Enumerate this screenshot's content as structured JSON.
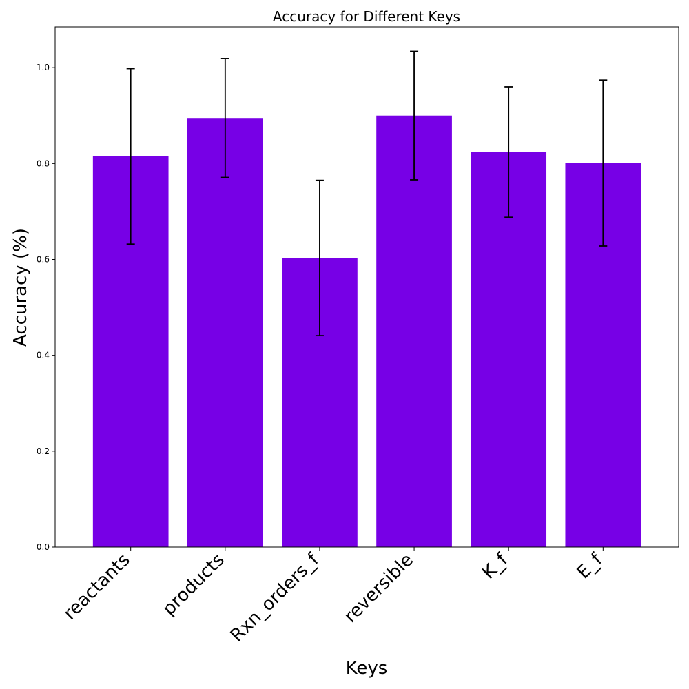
{
  "chart_data": {
    "type": "bar",
    "title": "Accuracy for Different Keys",
    "xlabel": "Keys",
    "ylabel": "Accuracy (%)",
    "categories": [
      "reactants",
      "products",
      "Rxn_orders_f",
      "reversible",
      "K_f",
      "E_f"
    ],
    "values": [
      0.815,
      0.895,
      0.603,
      0.9,
      0.824,
      0.801
    ],
    "errors": [
      0.183,
      0.124,
      0.162,
      0.134,
      0.136,
      0.173
    ],
    "ylim": [
      0,
      1.085
    ],
    "yticks": [
      "0.0",
      "0.2",
      "0.4",
      "0.6",
      "0.8",
      "1.0"
    ],
    "bar_color": "#7700e6",
    "errorbar_color": "#000000",
    "grid": false,
    "legend": "none"
  }
}
